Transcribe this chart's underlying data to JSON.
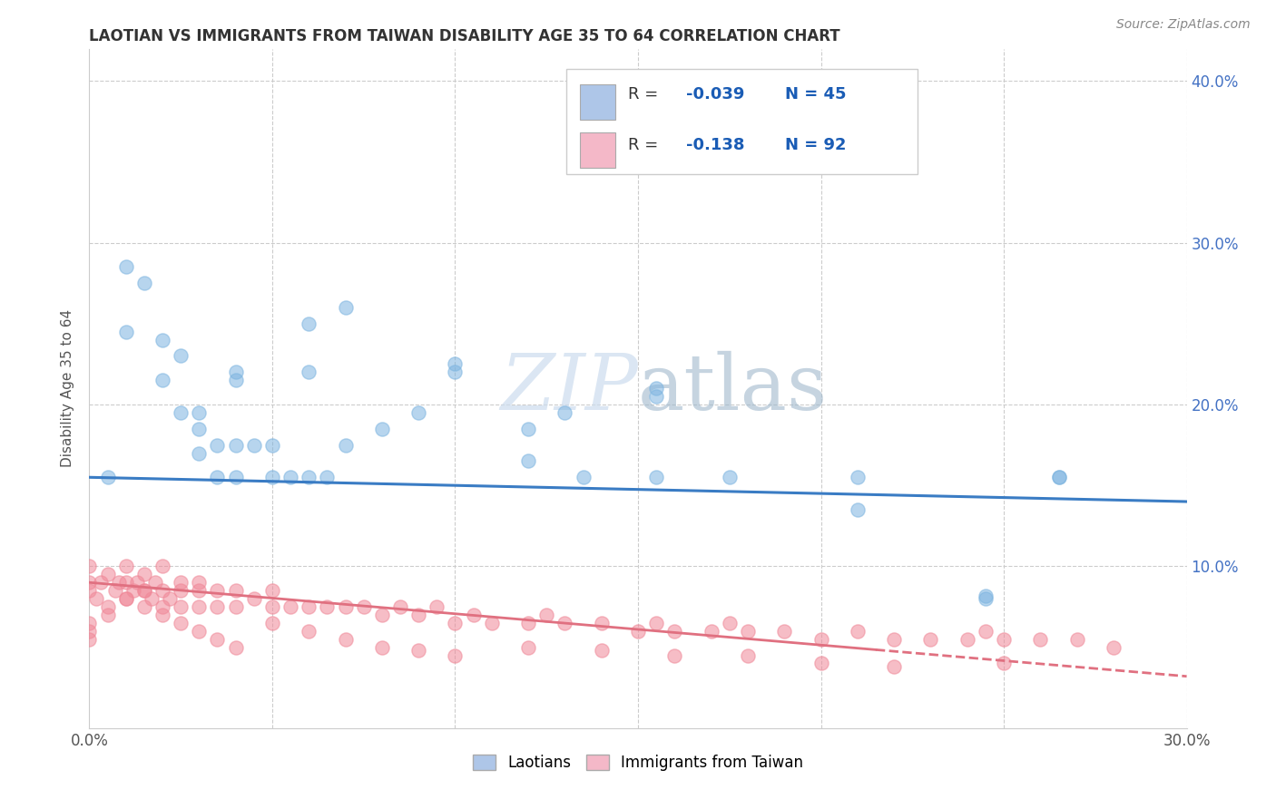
{
  "title": "LAOTIAN VS IMMIGRANTS FROM TAIWAN DISABILITY AGE 35 TO 64 CORRELATION CHART",
  "source": "Source: ZipAtlas.com",
  "ylabel": "Disability Age 35 to 64",
  "xlim": [
    0.0,
    0.3
  ],
  "ylim": [
    0.0,
    0.42
  ],
  "legend1_color": "#aec6e8",
  "legend2_color": "#f4b8c8",
  "R1": -0.039,
  "N1": 45,
  "R2": -0.138,
  "N2": 92,
  "background_color": "#ffffff",
  "scatter_color_1": "#7db4e0",
  "scatter_color_2": "#f08898",
  "line_color_1": "#3a7cc4",
  "line_color_2": "#e07080",
  "laotian_x": [
    0.005,
    0.01,
    0.01,
    0.015,
    0.02,
    0.02,
    0.025,
    0.025,
    0.03,
    0.03,
    0.035,
    0.035,
    0.04,
    0.04,
    0.04,
    0.045,
    0.05,
    0.05,
    0.055,
    0.06,
    0.06,
    0.065,
    0.07,
    0.08,
    0.09,
    0.1,
    0.12,
    0.13,
    0.155,
    0.155,
    0.175,
    0.21,
    0.245,
    0.245,
    0.265,
    0.265,
    0.03,
    0.04,
    0.06,
    0.07,
    0.1,
    0.12,
    0.155,
    0.21,
    0.135
  ],
  "laotian_y": [
    0.155,
    0.245,
    0.285,
    0.275,
    0.215,
    0.24,
    0.195,
    0.23,
    0.17,
    0.185,
    0.155,
    0.175,
    0.155,
    0.175,
    0.215,
    0.175,
    0.155,
    0.175,
    0.155,
    0.155,
    0.22,
    0.155,
    0.175,
    0.185,
    0.195,
    0.225,
    0.185,
    0.195,
    0.21,
    0.205,
    0.155,
    0.135,
    0.082,
    0.08,
    0.155,
    0.155,
    0.195,
    0.22,
    0.25,
    0.26,
    0.22,
    0.165,
    0.155,
    0.155,
    0.155
  ],
  "taiwan_x": [
    0.0,
    0.0,
    0.0,
    0.0,
    0.0,
    0.002,
    0.003,
    0.005,
    0.005,
    0.007,
    0.008,
    0.01,
    0.01,
    0.01,
    0.012,
    0.013,
    0.015,
    0.015,
    0.015,
    0.017,
    0.018,
    0.02,
    0.02,
    0.02,
    0.022,
    0.025,
    0.025,
    0.025,
    0.03,
    0.03,
    0.03,
    0.035,
    0.035,
    0.04,
    0.04,
    0.045,
    0.05,
    0.05,
    0.055,
    0.06,
    0.065,
    0.07,
    0.075,
    0.08,
    0.085,
    0.09,
    0.095,
    0.1,
    0.105,
    0.11,
    0.12,
    0.125,
    0.13,
    0.14,
    0.15,
    0.155,
    0.16,
    0.17,
    0.175,
    0.18,
    0.19,
    0.2,
    0.21,
    0.22,
    0.23,
    0.24,
    0.245,
    0.25,
    0.26,
    0.27,
    0.28,
    0.0,
    0.005,
    0.01,
    0.015,
    0.02,
    0.025,
    0.03,
    0.035,
    0.04,
    0.05,
    0.06,
    0.07,
    0.08,
    0.09,
    0.1,
    0.12,
    0.14,
    0.16,
    0.18,
    0.2,
    0.22,
    0.25
  ],
  "taiwan_y": [
    0.085,
    0.09,
    0.1,
    0.055,
    0.065,
    0.08,
    0.09,
    0.075,
    0.095,
    0.085,
    0.09,
    0.08,
    0.09,
    0.1,
    0.085,
    0.09,
    0.075,
    0.085,
    0.095,
    0.08,
    0.09,
    0.075,
    0.085,
    0.1,
    0.08,
    0.075,
    0.085,
    0.09,
    0.075,
    0.085,
    0.09,
    0.075,
    0.085,
    0.075,
    0.085,
    0.08,
    0.075,
    0.085,
    0.075,
    0.075,
    0.075,
    0.075,
    0.075,
    0.07,
    0.075,
    0.07,
    0.075,
    0.065,
    0.07,
    0.065,
    0.065,
    0.07,
    0.065,
    0.065,
    0.06,
    0.065,
    0.06,
    0.06,
    0.065,
    0.06,
    0.06,
    0.055,
    0.06,
    0.055,
    0.055,
    0.055,
    0.06,
    0.055,
    0.055,
    0.055,
    0.05,
    0.06,
    0.07,
    0.08,
    0.085,
    0.07,
    0.065,
    0.06,
    0.055,
    0.05,
    0.065,
    0.06,
    0.055,
    0.05,
    0.048,
    0.045,
    0.05,
    0.048,
    0.045,
    0.045,
    0.04,
    0.038,
    0.04
  ]
}
